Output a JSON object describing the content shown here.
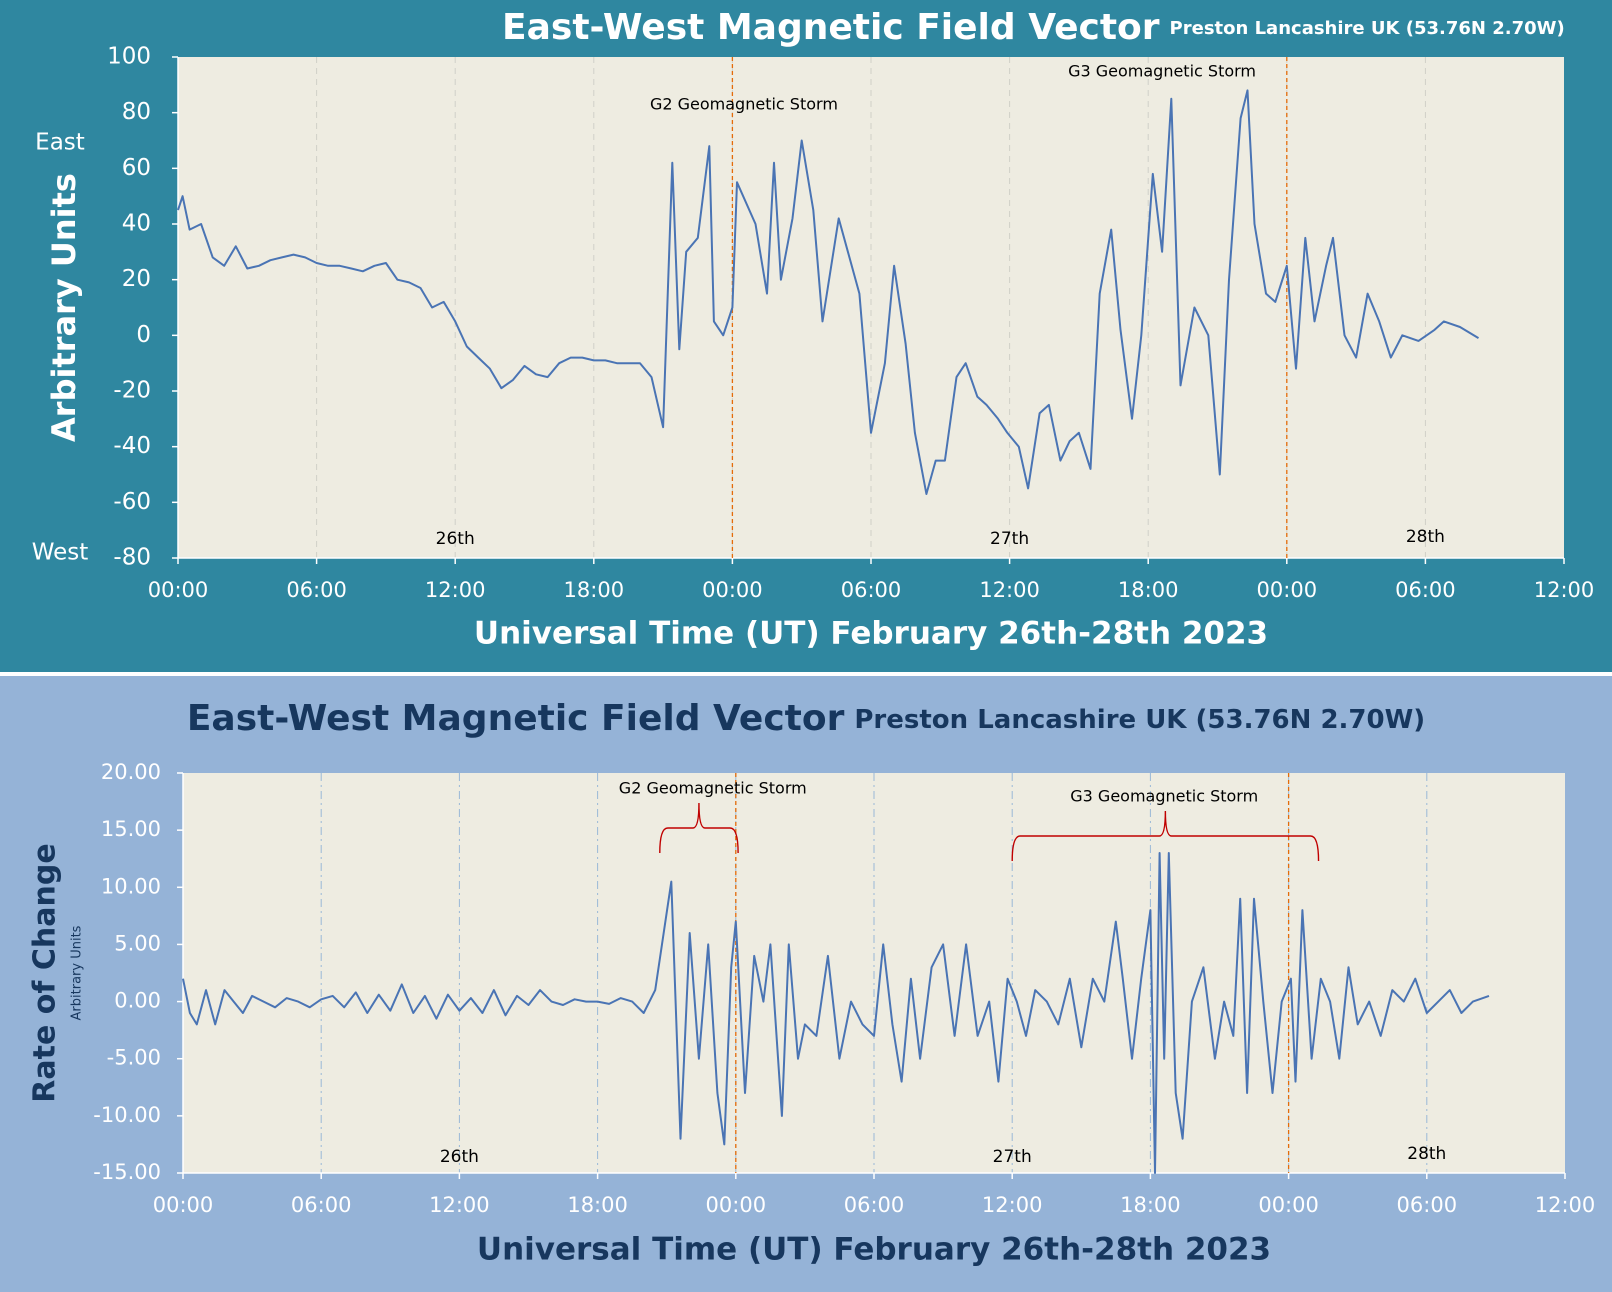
{
  "chart_data": [
    {
      "type": "line",
      "title": "East-West Magnetic Field Vector",
      "subtitle": "Preston Lancashire UK (53.76N 2.70W)",
      "ylabel": "Arbitrary Units",
      "xlabel": "Universal Time (UT) February 26th-28th 2023",
      "direction_labels": [
        "East",
        "West"
      ],
      "annotations": [
        "G2 Geomagnetic Storm",
        "G3 Geomagnetic Storm"
      ],
      "day_labels": [
        "26th",
        "27th",
        "28th"
      ],
      "reference_lines": [
        24,
        48
      ],
      "color": "#4a74b4",
      "grid": true,
      "xlim": [
        0,
        60
      ],
      "xticks": [
        {
          "value": 0,
          "label": "00:00"
        },
        {
          "value": 6,
          "label": "06:00"
        },
        {
          "value": 12,
          "label": "12:00"
        },
        {
          "value": 18,
          "label": "18:00"
        },
        {
          "value": 24,
          "label": "00:00"
        },
        {
          "value": 30,
          "label": "06:00"
        },
        {
          "value": 36,
          "label": "12:00"
        },
        {
          "value": 42,
          "label": "18:00"
        },
        {
          "value": 48,
          "label": "00:00"
        },
        {
          "value": 54,
          "label": "06:00"
        },
        {
          "value": 60,
          "label": "12:00"
        }
      ],
      "ylim": [
        -80,
        100
      ],
      "yticks": [
        -80,
        -60,
        -40,
        -20,
        0,
        20,
        40,
        60,
        80,
        100
      ],
      "x": [
        0,
        0.2,
        0.5,
        1,
        1.5,
        2,
        2.5,
        3,
        3.5,
        4,
        4.5,
        5,
        5.5,
        6,
        6.5,
        7,
        7.5,
        8,
        8.5,
        9,
        9.5,
        10,
        10.5,
        11,
        11.5,
        12,
        12.5,
        13,
        13.5,
        14,
        14.5,
        15,
        15.5,
        16,
        16.5,
        17,
        17.5,
        18,
        18.5,
        19,
        19.5,
        20,
        20.5,
        21,
        21.4,
        21.7,
        22,
        22.5,
        23,
        23.2,
        23.6,
        24,
        24.2,
        25,
        25.5,
        25.8,
        26.1,
        26.6,
        27,
        27.5,
        27.9,
        28.6,
        29,
        29.5,
        30,
        30.6,
        31,
        31.5,
        31.9,
        32.4,
        32.8,
        33.2,
        33.7,
        34.1,
        34.6,
        35,
        35.5,
        35.9,
        36.4,
        36.8,
        37.3,
        37.7,
        38.2,
        38.6,
        39,
        39.5,
        39.9,
        40.4,
        40.8,
        41.3,
        41.7,
        42.2,
        42.6,
        43,
        43.4,
        44,
        44.6,
        45.1,
        45.5,
        46,
        46.3,
        46.6,
        47.1,
        47.5,
        48,
        48.4,
        48.8,
        49.2,
        49.7,
        50,
        50.5,
        51,
        51.5,
        52,
        52.5,
        53,
        53.7,
        54.4,
        54.8,
        55.5,
        56.3
      ],
      "values": [
        45,
        50,
        38,
        40,
        28,
        25,
        32,
        24,
        25,
        27,
        28,
        29,
        28,
        26,
        25,
        25,
        24,
        23,
        25,
        26,
        20,
        19,
        17,
        10,
        12,
        5,
        -4,
        -8,
        -12,
        -19,
        -16,
        -11,
        -14,
        -15,
        -10,
        -8,
        -8,
        -9,
        -9,
        -10,
        -10,
        -10,
        -15,
        -33,
        62,
        -5,
        30,
        35,
        68,
        5,
        0,
        10,
        55,
        40,
        15,
        62,
        20,
        42,
        70,
        45,
        5,
        42,
        30,
        15,
        -35,
        -10,
        25,
        -3,
        -35,
        -57,
        -45,
        -45,
        -15,
        -10,
        -22,
        -25,
        -30,
        -35,
        -40,
        -55,
        -28,
        -25,
        -45,
        -38,
        -35,
        -48,
        15,
        38,
        2,
        -30,
        0,
        58,
        30,
        85,
        -18,
        10,
        0,
        -50,
        20,
        78,
        88,
        40,
        15,
        12,
        25,
        -12,
        35,
        5,
        25,
        35,
        0,
        -8,
        15,
        5,
        -8,
        0,
        -2,
        2,
        5,
        3,
        -1
      ]
    },
    {
      "type": "line",
      "title": "East-West Magnetic Field Vector",
      "subtitle": "Preston Lancashire UK (53.76N 2.70W)",
      "ylabel": "Rate of Change",
      "ylabel_sub": "Arbitrary Units",
      "xlabel": "Universal Time (UT)  February 26th-28th 2023",
      "annotations": [
        "G2 Geomagnetic Storm",
        "G3 Geomagnetic Storm"
      ],
      "day_labels": [
        "26th",
        "27th",
        "28th"
      ],
      "reference_lines": [
        24,
        48
      ],
      "color": "#4a74b4",
      "grid": true,
      "xlim": [
        0,
        60
      ],
      "xticks": [
        {
          "value": 0,
          "label": "00:00"
        },
        {
          "value": 6,
          "label": "06:00"
        },
        {
          "value": 12,
          "label": "12:00"
        },
        {
          "value": 18,
          "label": "18:00"
        },
        {
          "value": 24,
          "label": "00:00"
        },
        {
          "value": 30,
          "label": "06:00"
        },
        {
          "value": 36,
          "label": "12:00"
        },
        {
          "value": 42,
          "label": "18:00"
        },
        {
          "value": 48,
          "label": "00:00"
        },
        {
          "value": 54,
          "label": "06:00"
        },
        {
          "value": 60,
          "label": "12:00"
        }
      ],
      "ylim": [
        -15,
        20
      ],
      "yticks": [
        {
          "value": -15,
          "label": "-15.00"
        },
        {
          "value": -10,
          "label": "-10.00"
        },
        {
          "value": -5,
          "label": "-5.00"
        },
        {
          "value": 0,
          "label": "0.00"
        },
        {
          "value": 5,
          "label": "5.00"
        },
        {
          "value": 10,
          "label": "10.00"
        },
        {
          "value": 15,
          "label": "15.00"
        },
        {
          "value": 20,
          "label": "20.00"
        }
      ],
      "x": [
        0,
        0.3,
        0.6,
        1,
        1.4,
        1.8,
        2.2,
        2.6,
        3,
        3.5,
        4,
        4.5,
        5,
        5.5,
        6,
        6.5,
        7,
        7.5,
        8,
        8.5,
        9,
        9.5,
        10,
        10.5,
        11,
        11.5,
        12,
        12.5,
        13,
        13.5,
        14,
        14.5,
        15,
        15.5,
        16,
        16.5,
        17,
        17.5,
        18,
        18.5,
        19,
        19.5,
        20,
        20.5,
        21.2,
        21.6,
        22,
        22.4,
        22.8,
        23.2,
        23.5,
        23.8,
        24,
        24.4,
        24.8,
        25.2,
        25.5,
        26,
        26.3,
        26.7,
        27,
        27.5,
        28,
        28.5,
        29,
        29.5,
        30,
        30.4,
        30.8,
        31.2,
        31.6,
        32,
        32.5,
        33,
        33.5,
        34,
        34.5,
        35,
        35.4,
        35.8,
        36.2,
        36.6,
        37,
        37.5,
        38,
        38.5,
        39,
        39.5,
        40,
        40.5,
        40.8,
        41.2,
        41.6,
        42,
        42.2,
        42.4,
        42.6,
        42.8,
        43.1,
        43.4,
        43.8,
        44.3,
        44.8,
        45.2,
        45.6,
        45.9,
        46.2,
        46.5,
        46.9,
        47.3,
        47.7,
        48.1,
        48.3,
        48.6,
        49,
        49.4,
        49.8,
        50.2,
        50.6,
        51,
        51.5,
        52,
        52.5,
        53,
        53.5,
        54,
        54.5,
        55,
        55.5,
        56,
        56.7
      ],
      "values": [
        2,
        -1,
        -2,
        1,
        -2,
        1,
        0,
        -1,
        0.5,
        0,
        -0.5,
        0.3,
        0,
        -0.5,
        0.2,
        0.5,
        -0.5,
        0.8,
        -1,
        0.6,
        -0.8,
        1.5,
        -1,
        0.5,
        -1.5,
        0.6,
        -0.8,
        0.3,
        -1,
        1,
        -1.2,
        0.5,
        -0.3,
        1,
        0,
        -0.3,
        0.2,
        0,
        0,
        -0.2,
        0.3,
        0,
        -1,
        1,
        10.5,
        -12,
        6,
        -5,
        5,
        -8,
        -12.5,
        3,
        7,
        -8,
        4,
        0,
        5,
        -10,
        5,
        -5,
        -2,
        -3,
        4,
        -5,
        0,
        -2,
        -3,
        5,
        -2,
        -7,
        2,
        -5,
        3,
        5,
        -3,
        5,
        -3,
        0,
        -7,
        2,
        0,
        -3,
        1,
        0,
        -2,
        2,
        -4,
        2,
        0,
        7,
        2,
        -5,
        2,
        8,
        -15,
        13,
        -5,
        13,
        -8,
        -12,
        0,
        3,
        -5,
        0,
        -3,
        9,
        -8,
        9,
        0,
        -8,
        0,
        2,
        -7,
        8,
        -5,
        2,
        0,
        -5,
        3,
        -2,
        0,
        -3,
        1,
        0,
        2,
        -1,
        0,
        1,
        -1,
        0,
        0.5
      ]
    }
  ]
}
